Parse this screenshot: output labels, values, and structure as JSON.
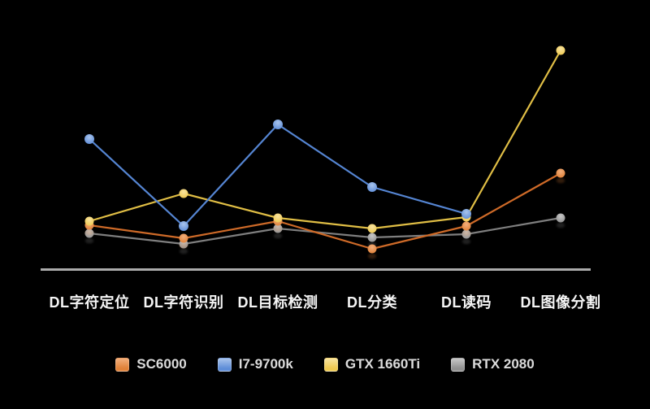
{
  "background_color": "#000000",
  "axis_color": "#ABABAB",
  "label_color": "#F5F5F5",
  "legend_text_color": "#DCDCDC",
  "chart_data": {
    "type": "line",
    "title": "",
    "xlabel": "",
    "ylabel": "",
    "note": "No numeric axis shown; values are relative units estimated from pixel heights above the baseline axis",
    "ylim": [
      0,
      290
    ],
    "grid": false,
    "legend_position": "bottom",
    "categories": [
      "DL字符定位",
      "DL字符识别",
      "DL目标检测",
      "DL分类",
      "DL读码",
      "DL图像分割"
    ],
    "series": [
      {
        "name": "SC6000",
        "color": "#CE6A28",
        "dot_light": "#F2AE7B",
        "dot_base": "#E08138",
        "values": [
          53,
          37,
          58,
          24,
          52,
          117
        ]
      },
      {
        "name": "I7-9700k",
        "color": "#5585D2",
        "dot_light": "#A9C4EC",
        "dot_base": "#5E8DD8",
        "values": [
          159,
          52,
          177,
          100,
          67,
          null
        ]
      },
      {
        "name": "GTX 1660Ti",
        "color": "#E0BE45",
        "dot_light": "#F8E3A0",
        "dot_base": "#EFC94F",
        "values": [
          58,
          92,
          62,
          49,
          63,
          268
        ]
      },
      {
        "name": "RTX 2080",
        "color": "#7F7F7F",
        "dot_light": "#C8C8C8",
        "dot_base": "#909090",
        "values": [
          43,
          30,
          49,
          38,
          42,
          62
        ]
      }
    ]
  }
}
